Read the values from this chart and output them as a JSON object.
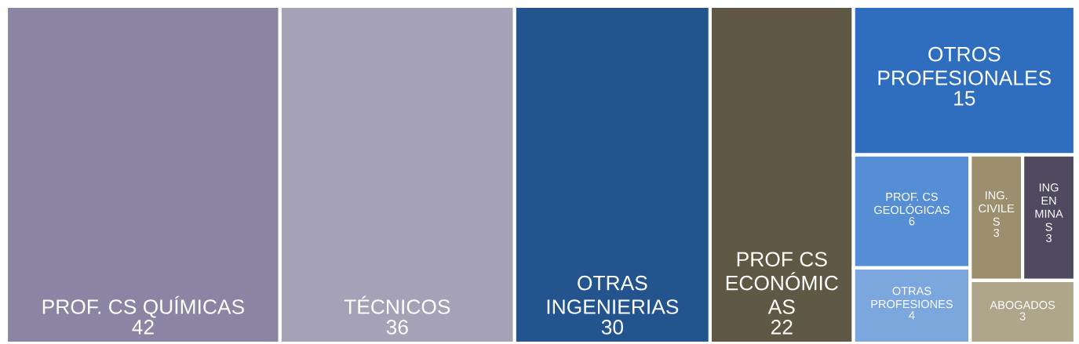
{
  "chart_data": {
    "type": "other",
    "data_labels": true,
    "categories": [
      "PROF. CS QUÍMICAS",
      "TÉCNICOS",
      "OTRAS\nINGENIERIAS",
      "PROF CS\nECONÓMIC\nAS",
      "OTROS\nPROFESIONALES",
      "PROF. CS\nGEOLÓGICAS",
      "OTRAS\nPROFESIONES",
      "ING.\nCIVILE\nS",
      "ING\nEN\nMINA\nS",
      "ABOGADOS"
    ],
    "values": [
      42,
      36,
      30,
      22,
      15,
      6,
      4,
      3,
      3,
      3
    ],
    "colors": [
      "#8b85a3",
      "#a5a1b7",
      "#24548e",
      "#5f5844",
      "#2f6ebf",
      "#558ed5",
      "#7ca6de",
      "#9c8f6e",
      "#4f4a60",
      "#aea58a"
    ]
  }
}
